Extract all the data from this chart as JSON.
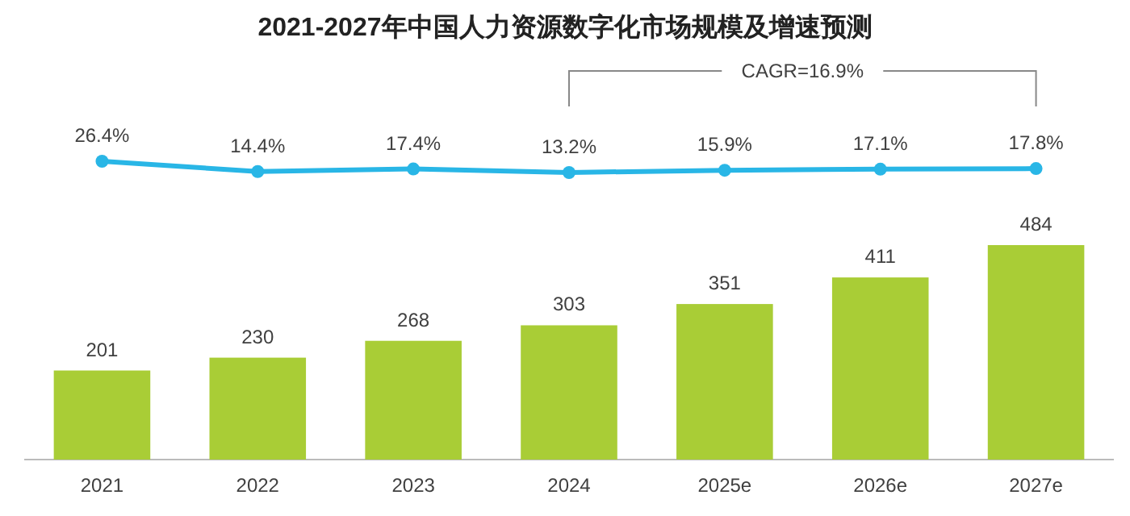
{
  "chart_data": [
    {
      "type": "line",
      "title": "2021-2027年中国人力资源数字化市场规模及增速预测",
      "categories": [
        null,
        null,
        null,
        null,
        null,
        null,
        null
      ],
      "color": "#29b6e6",
      "marker": "circle",
      "tick_labels": false,
      "values": [
        26.4,
        14.4,
        17.4,
        13.2,
        15.9,
        17.1,
        17.8
      ],
      "value_labels": [
        "26.4%",
        "14.4%",
        "17.4%",
        "13.2%",
        "15.9%",
        "17.1%",
        "17.8%"
      ],
      "annotations": [
        "CAGR=16.9%"
      ]
    },
    {
      "type": "bar",
      "categories": [
        "2021",
        "2022",
        "2023",
        "2024",
        "2025e",
        "2026e",
        "2027e"
      ],
      "color": "#a9cd36",
      "tick_labels": "x",
      "data_labels": true,
      "values": [
        201,
        230,
        268,
        303,
        351,
        411,
        484
      ]
    }
  ]
}
